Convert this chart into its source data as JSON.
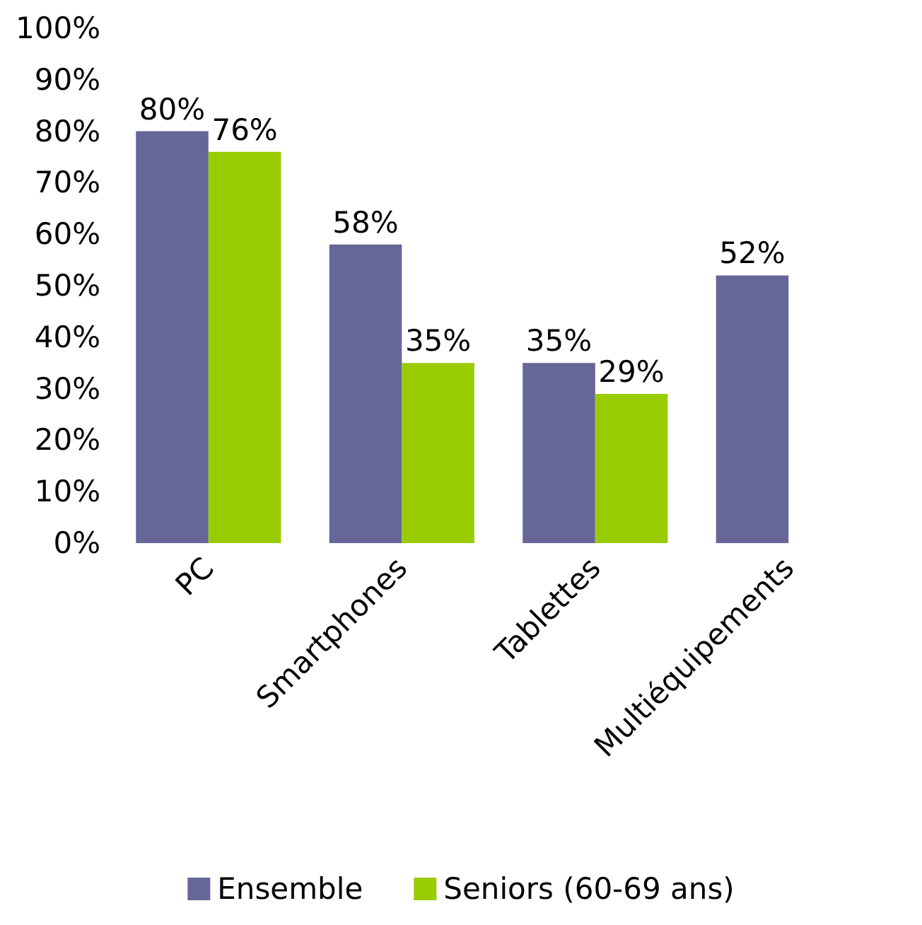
{
  "chart_data": {
    "type": "bar",
    "categories": [
      "PC",
      "Smartphones",
      "Tablettes",
      "Multiéquipements"
    ],
    "series": [
      {
        "name": "Ensemble",
        "color": "#666699",
        "values": [
          80,
          58,
          35,
          52
        ],
        "value_labels": [
          "80%",
          "58%",
          "35%",
          "52%"
        ]
      },
      {
        "name": "Seniors (60-69 ans)",
        "color": "#99cc00",
        "values": [
          76,
          35,
          29,
          null
        ],
        "value_labels": [
          "76%",
          "35%",
          "29%",
          null
        ]
      }
    ],
    "ylim": [
      0,
      100
    ],
    "yticks": [
      {
        "value": 0,
        "label": "0%"
      },
      {
        "value": 10,
        "label": "10%"
      },
      {
        "value": 20,
        "label": "20%"
      },
      {
        "value": 30,
        "label": "30%"
      },
      {
        "value": 40,
        "label": "40%"
      },
      {
        "value": 50,
        "label": "50%"
      },
      {
        "value": 60,
        "label": "60%"
      },
      {
        "value": 70,
        "label": "70%"
      },
      {
        "value": 80,
        "label": "80%"
      },
      {
        "value": 90,
        "label": "90%"
      },
      {
        "value": 100,
        "label": "100%"
      }
    ],
    "grid": false,
    "legend": "bottom"
  }
}
